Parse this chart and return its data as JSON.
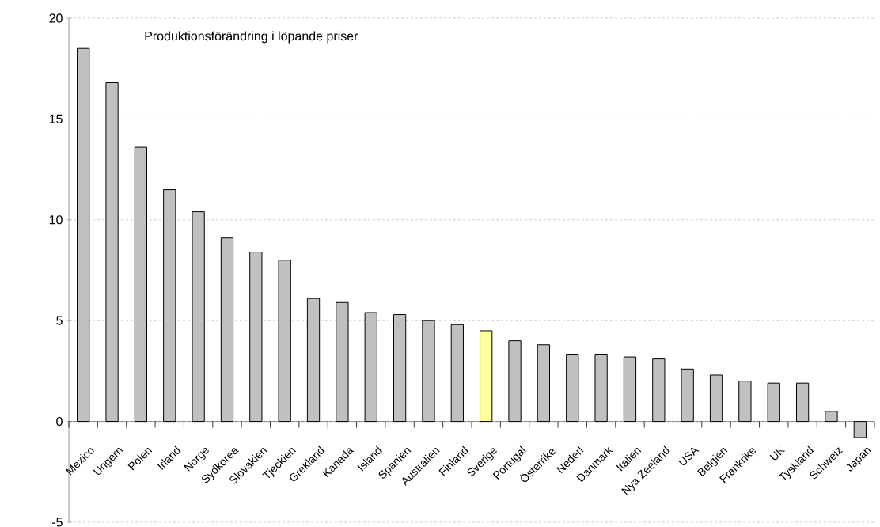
{
  "chart_data": {
    "type": "bar",
    "title": "Produktionsförändring i löpande priser",
    "categories": [
      "Mexico",
      "Ungern",
      "Polen",
      "Irland",
      "Norge",
      "Sydkorea",
      "Slovakien",
      "Tjeckien",
      "Grekland",
      "Kanada",
      "Island",
      "Spanien",
      "Australien",
      "Finland",
      "Sverige",
      "Portugal",
      "Österrike",
      "Nederl",
      "Danmark",
      "Italien",
      "Nya Zeeland",
      "USA",
      "Belgien",
      "Frankrike",
      "UK",
      "Tyskland",
      "Schweiz",
      "Japan"
    ],
    "values": [
      18.5,
      16.8,
      13.6,
      11.5,
      10.4,
      9.1,
      8.4,
      8.0,
      6.1,
      5.9,
      5.4,
      5.3,
      5.0,
      4.8,
      4.5,
      4.0,
      3.8,
      3.3,
      3.3,
      3.2,
      3.1,
      2.6,
      2.3,
      2.0,
      1.9,
      1.9,
      0.5,
      -0.8
    ],
    "colors": [
      "#c0c0c0",
      "#c0c0c0",
      "#c0c0c0",
      "#c0c0c0",
      "#c0c0c0",
      "#c0c0c0",
      "#c0c0c0",
      "#c0c0c0",
      "#c0c0c0",
      "#c0c0c0",
      "#c0c0c0",
      "#c0c0c0",
      "#c0c0c0",
      "#c0c0c0",
      "#ffff99",
      "#c0c0c0",
      "#c0c0c0",
      "#c0c0c0",
      "#c0c0c0",
      "#c0c0c0",
      "#c0c0c0",
      "#c0c0c0",
      "#c0c0c0",
      "#c0c0c0",
      "#c0c0c0",
      "#c0c0c0",
      "#c0c0c0",
      "#c0c0c0"
    ],
    "ylim": [
      -5,
      20
    ],
    "yticks": [
      -5,
      0,
      5,
      10,
      15,
      20
    ],
    "grid": "y"
  }
}
